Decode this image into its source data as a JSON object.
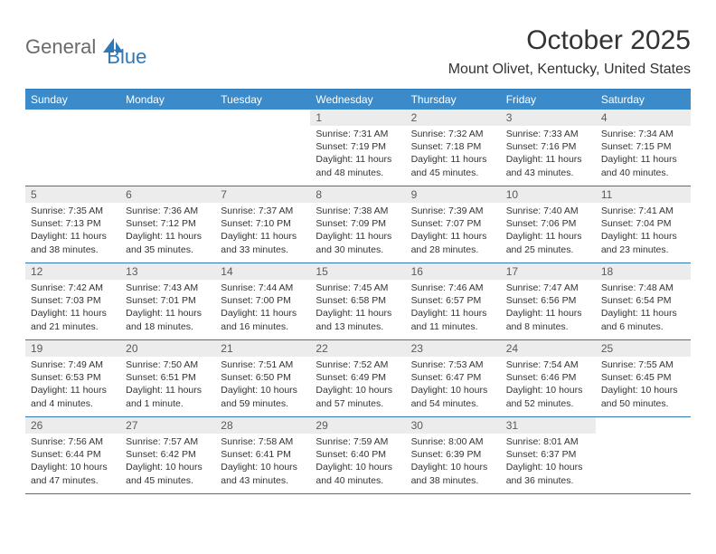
{
  "logo": {
    "part1": "General",
    "part2": "Blue"
  },
  "title": "October 2025",
  "location": "Mount Olivet, Kentucky, United States",
  "colors": {
    "header_bg": "#3b8bca",
    "header_text": "#ffffff",
    "border": "#2f78b7",
    "daynum_bg": "#ececec",
    "daynum_text": "#5a5a5a",
    "body_text": "#333333",
    "logo_gray": "#6a6a6a",
    "logo_blue": "#2f78b7"
  },
  "day_headers": [
    "Sunday",
    "Monday",
    "Tuesday",
    "Wednesday",
    "Thursday",
    "Friday",
    "Saturday"
  ],
  "weeks": [
    [
      {
        "n": "",
        "lines": [
          "",
          "",
          "",
          ""
        ]
      },
      {
        "n": "",
        "lines": [
          "",
          "",
          "",
          ""
        ]
      },
      {
        "n": "",
        "lines": [
          "",
          "",
          "",
          ""
        ]
      },
      {
        "n": "1",
        "lines": [
          "Sunrise: 7:31 AM",
          "Sunset: 7:19 PM",
          "Daylight: 11 hours",
          "and 48 minutes."
        ]
      },
      {
        "n": "2",
        "lines": [
          "Sunrise: 7:32 AM",
          "Sunset: 7:18 PM",
          "Daylight: 11 hours",
          "and 45 minutes."
        ]
      },
      {
        "n": "3",
        "lines": [
          "Sunrise: 7:33 AM",
          "Sunset: 7:16 PM",
          "Daylight: 11 hours",
          "and 43 minutes."
        ]
      },
      {
        "n": "4",
        "lines": [
          "Sunrise: 7:34 AM",
          "Sunset: 7:15 PM",
          "Daylight: 11 hours",
          "and 40 minutes."
        ]
      }
    ],
    [
      {
        "n": "5",
        "lines": [
          "Sunrise: 7:35 AM",
          "Sunset: 7:13 PM",
          "Daylight: 11 hours",
          "and 38 minutes."
        ]
      },
      {
        "n": "6",
        "lines": [
          "Sunrise: 7:36 AM",
          "Sunset: 7:12 PM",
          "Daylight: 11 hours",
          "and 35 minutes."
        ]
      },
      {
        "n": "7",
        "lines": [
          "Sunrise: 7:37 AM",
          "Sunset: 7:10 PM",
          "Daylight: 11 hours",
          "and 33 minutes."
        ]
      },
      {
        "n": "8",
        "lines": [
          "Sunrise: 7:38 AM",
          "Sunset: 7:09 PM",
          "Daylight: 11 hours",
          "and 30 minutes."
        ]
      },
      {
        "n": "9",
        "lines": [
          "Sunrise: 7:39 AM",
          "Sunset: 7:07 PM",
          "Daylight: 11 hours",
          "and 28 minutes."
        ]
      },
      {
        "n": "10",
        "lines": [
          "Sunrise: 7:40 AM",
          "Sunset: 7:06 PM",
          "Daylight: 11 hours",
          "and 25 minutes."
        ]
      },
      {
        "n": "11",
        "lines": [
          "Sunrise: 7:41 AM",
          "Sunset: 7:04 PM",
          "Daylight: 11 hours",
          "and 23 minutes."
        ]
      }
    ],
    [
      {
        "n": "12",
        "lines": [
          "Sunrise: 7:42 AM",
          "Sunset: 7:03 PM",
          "Daylight: 11 hours",
          "and 21 minutes."
        ]
      },
      {
        "n": "13",
        "lines": [
          "Sunrise: 7:43 AM",
          "Sunset: 7:01 PM",
          "Daylight: 11 hours",
          "and 18 minutes."
        ]
      },
      {
        "n": "14",
        "lines": [
          "Sunrise: 7:44 AM",
          "Sunset: 7:00 PM",
          "Daylight: 11 hours",
          "and 16 minutes."
        ]
      },
      {
        "n": "15",
        "lines": [
          "Sunrise: 7:45 AM",
          "Sunset: 6:58 PM",
          "Daylight: 11 hours",
          "and 13 minutes."
        ]
      },
      {
        "n": "16",
        "lines": [
          "Sunrise: 7:46 AM",
          "Sunset: 6:57 PM",
          "Daylight: 11 hours",
          "and 11 minutes."
        ]
      },
      {
        "n": "17",
        "lines": [
          "Sunrise: 7:47 AM",
          "Sunset: 6:56 PM",
          "Daylight: 11 hours",
          "and 8 minutes."
        ]
      },
      {
        "n": "18",
        "lines": [
          "Sunrise: 7:48 AM",
          "Sunset: 6:54 PM",
          "Daylight: 11 hours",
          "and 6 minutes."
        ]
      }
    ],
    [
      {
        "n": "19",
        "lines": [
          "Sunrise: 7:49 AM",
          "Sunset: 6:53 PM",
          "Daylight: 11 hours",
          "and 4 minutes."
        ]
      },
      {
        "n": "20",
        "lines": [
          "Sunrise: 7:50 AM",
          "Sunset: 6:51 PM",
          "Daylight: 11 hours",
          "and 1 minute."
        ]
      },
      {
        "n": "21",
        "lines": [
          "Sunrise: 7:51 AM",
          "Sunset: 6:50 PM",
          "Daylight: 10 hours",
          "and 59 minutes."
        ]
      },
      {
        "n": "22",
        "lines": [
          "Sunrise: 7:52 AM",
          "Sunset: 6:49 PM",
          "Daylight: 10 hours",
          "and 57 minutes."
        ]
      },
      {
        "n": "23",
        "lines": [
          "Sunrise: 7:53 AM",
          "Sunset: 6:47 PM",
          "Daylight: 10 hours",
          "and 54 minutes."
        ]
      },
      {
        "n": "24",
        "lines": [
          "Sunrise: 7:54 AM",
          "Sunset: 6:46 PM",
          "Daylight: 10 hours",
          "and 52 minutes."
        ]
      },
      {
        "n": "25",
        "lines": [
          "Sunrise: 7:55 AM",
          "Sunset: 6:45 PM",
          "Daylight: 10 hours",
          "and 50 minutes."
        ]
      }
    ],
    [
      {
        "n": "26",
        "lines": [
          "Sunrise: 7:56 AM",
          "Sunset: 6:44 PM",
          "Daylight: 10 hours",
          "and 47 minutes."
        ]
      },
      {
        "n": "27",
        "lines": [
          "Sunrise: 7:57 AM",
          "Sunset: 6:42 PM",
          "Daylight: 10 hours",
          "and 45 minutes."
        ]
      },
      {
        "n": "28",
        "lines": [
          "Sunrise: 7:58 AM",
          "Sunset: 6:41 PM",
          "Daylight: 10 hours",
          "and 43 minutes."
        ]
      },
      {
        "n": "29",
        "lines": [
          "Sunrise: 7:59 AM",
          "Sunset: 6:40 PM",
          "Daylight: 10 hours",
          "and 40 minutes."
        ]
      },
      {
        "n": "30",
        "lines": [
          "Sunrise: 8:00 AM",
          "Sunset: 6:39 PM",
          "Daylight: 10 hours",
          "and 38 minutes."
        ]
      },
      {
        "n": "31",
        "lines": [
          "Sunrise: 8:01 AM",
          "Sunset: 6:37 PM",
          "Daylight: 10 hours",
          "and 36 minutes."
        ]
      },
      {
        "n": "",
        "lines": [
          "",
          "",
          "",
          ""
        ]
      }
    ]
  ]
}
